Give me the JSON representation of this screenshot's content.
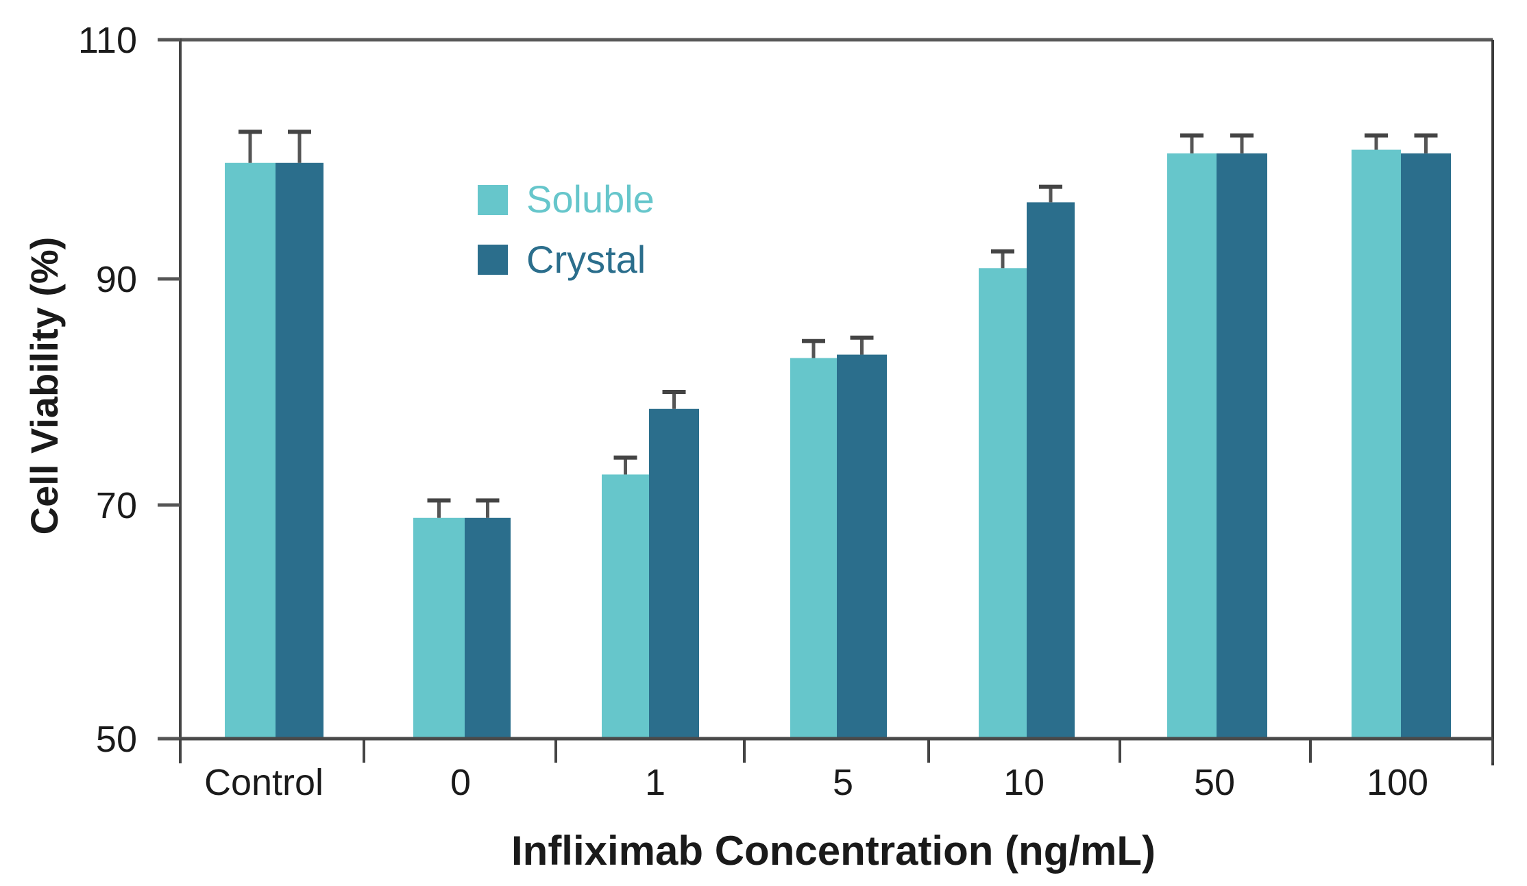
{
  "chart_data": {
    "type": "bar",
    "title": "",
    "xlabel": "Infliximab Concentration (ng/mL)",
    "ylabel": "Cell Viability (%)",
    "ylim": [
      50,
      110
    ],
    "yticks": [
      50,
      70,
      90,
      110
    ],
    "ytick_labels": [
      "50",
      "70",
      "90",
      "110"
    ],
    "categories": [
      "Control",
      "0",
      "1",
      "5",
      "10",
      "50",
      "100"
    ],
    "grid": false,
    "legend_position": "upper-left-inside",
    "error_bars": "upper only",
    "series": [
      {
        "name": "Soluble",
        "color": "#66C6CB",
        "values": [
          99.7,
          68.9,
          72.7,
          83.0,
          90.9,
          100.5,
          100.8
        ],
        "errors": [
          2.6,
          1.5,
          1.5,
          1.5,
          1.4,
          1.5,
          1.2
        ]
      },
      {
        "name": "Crystal",
        "color": "#2B6E8C",
        "values": [
          99.7,
          68.9,
          78.5,
          83.3,
          96.4,
          100.5,
          100.5
        ],
        "errors": [
          2.6,
          1.5,
          1.5,
          1.5,
          1.3,
          1.5,
          1.5
        ]
      }
    ]
  }
}
